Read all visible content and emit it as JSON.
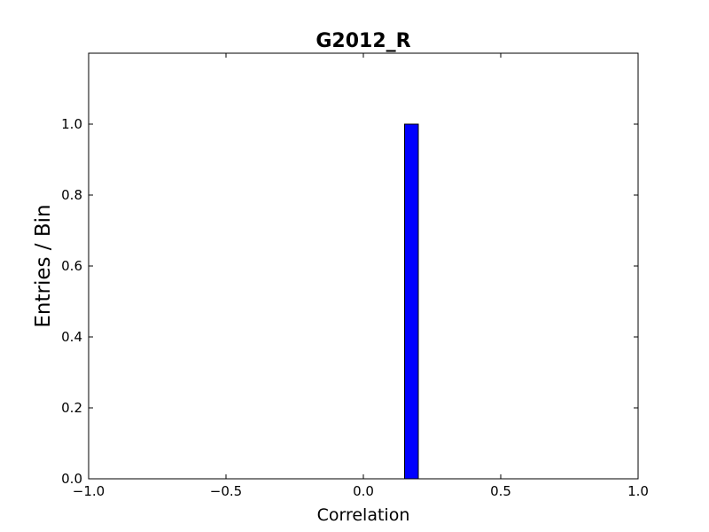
{
  "chart_data": {
    "type": "bar",
    "title": "G2012_R",
    "xlabel": "Correlation",
    "ylabel": "Entries / Bin",
    "xlim": [
      -1.0,
      1.0
    ],
    "ylim": [
      0.0,
      1.2
    ],
    "xticks": [
      -1.0,
      -0.5,
      0.0,
      0.5,
      1.0
    ],
    "xtick_labels": [
      "−1.0",
      "−0.5",
      "0.0",
      "0.5",
      "1.0"
    ],
    "yticks": [
      0.0,
      0.2,
      0.4,
      0.6,
      0.8,
      1.0
    ],
    "ytick_labels": [
      "0.0",
      "0.2",
      "0.4",
      "0.6",
      "0.8",
      "1.0"
    ],
    "bins": [
      {
        "x_start": 0.15,
        "x_end": 0.2,
        "value": 1.0
      }
    ],
    "bar_color": "#0000ff",
    "edge_color": "#000000",
    "grid": false,
    "legend": "none"
  }
}
